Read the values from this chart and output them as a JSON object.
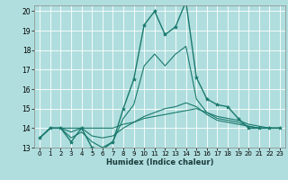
{
  "xlabel": "Humidex (Indice chaleur)",
  "xlim": [
    -0.5,
    23.5
  ],
  "ylim": [
    13,
    20.3
  ],
  "yticks": [
    13,
    14,
    15,
    16,
    17,
    18,
    19,
    20
  ],
  "xticks": [
    0,
    1,
    2,
    3,
    4,
    5,
    6,
    7,
    8,
    9,
    10,
    11,
    12,
    13,
    14,
    15,
    16,
    17,
    18,
    19,
    20,
    21,
    22,
    23
  ],
  "bg_color": "#b0dede",
  "grid_color": "#d0ecec",
  "line_color": "#1a7a6e",
  "lines": [
    {
      "x": [
        0,
        1,
        2,
        3,
        4,
        5,
        6,
        7,
        8,
        9,
        10,
        11,
        12,
        13,
        14,
        15,
        16,
        17,
        18,
        19,
        20,
        21,
        22,
        23
      ],
      "y": [
        13.5,
        14.0,
        14.0,
        13.3,
        14.0,
        13.0,
        12.9,
        13.3,
        15.0,
        16.5,
        19.3,
        20.0,
        18.8,
        19.2,
        20.5,
        16.6,
        15.5,
        15.2,
        15.1,
        14.5,
        14.0,
        14.0,
        14.0,
        14.0
      ],
      "marker": "*",
      "markersize": 3,
      "linewidth": 1.0
    },
    {
      "x": [
        0,
        1,
        2,
        3,
        4,
        5,
        6,
        7,
        8,
        9,
        10,
        11,
        12,
        13,
        14,
        15,
        16,
        17,
        18,
        19,
        20,
        21,
        22,
        23
      ],
      "y": [
        13.5,
        14.0,
        14.0,
        14.0,
        14.0,
        14.0,
        14.0,
        14.0,
        14.2,
        14.3,
        14.5,
        14.6,
        14.7,
        14.8,
        14.9,
        15.0,
        14.8,
        14.6,
        14.5,
        14.4,
        14.2,
        14.1,
        14.0,
        14.0
      ],
      "marker": null,
      "markersize": 0,
      "linewidth": 0.8
    },
    {
      "x": [
        0,
        1,
        2,
        3,
        4,
        5,
        6,
        7,
        8,
        9,
        10,
        11,
        12,
        13,
        14,
        15,
        16,
        17,
        18,
        19,
        20,
        21,
        22,
        23
      ],
      "y": [
        13.5,
        14.0,
        14.0,
        13.8,
        14.0,
        13.6,
        13.5,
        13.6,
        14.0,
        14.3,
        14.6,
        14.8,
        15.0,
        15.1,
        15.3,
        15.1,
        14.7,
        14.4,
        14.3,
        14.2,
        14.1,
        14.0,
        14.0,
        14.0
      ],
      "marker": null,
      "markersize": 0,
      "linewidth": 0.8
    },
    {
      "x": [
        0,
        1,
        2,
        3,
        4,
        5,
        6,
        7,
        8,
        9,
        10,
        11,
        12,
        13,
        14,
        15,
        16,
        17,
        18,
        19,
        20,
        21,
        22,
        23
      ],
      "y": [
        13.5,
        14.0,
        14.0,
        13.5,
        13.8,
        13.3,
        13.0,
        13.3,
        14.5,
        15.2,
        17.2,
        17.8,
        17.2,
        17.8,
        18.2,
        15.5,
        14.8,
        14.5,
        14.4,
        14.3,
        14.1,
        14.0,
        14.0,
        14.0
      ],
      "marker": null,
      "markersize": 0,
      "linewidth": 0.8
    }
  ]
}
